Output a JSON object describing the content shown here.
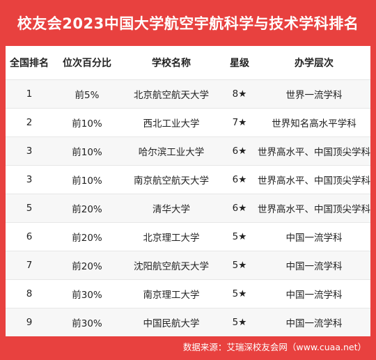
{
  "title": "校友会2023中国大学航空宇航科学与技术学科排名",
  "columns": [
    "全国排名",
    "位次百分比",
    "学校名称",
    "星级",
    "办学层次"
  ],
  "rows": [
    [
      "1",
      "前5%",
      "北京航空航天大学",
      "8★",
      "世界一流学科"
    ],
    [
      "2",
      "前10%",
      "西北工业大学",
      "7★",
      "世界知名高水平学科"
    ],
    [
      "3",
      "前10%",
      "哈尔滨工业大学",
      "6★",
      "世界高水平、中国顶尖学科"
    ],
    [
      "3",
      "前10%",
      "南京航空航天大学",
      "6★",
      "世界高水平、中国顶尖学科"
    ],
    [
      "5",
      "前20%",
      "清华大学",
      "6★",
      "世界高水平、中国顶尖学科"
    ],
    [
      "6",
      "前20%",
      "北京理工大学",
      "5★",
      "中国一流学科"
    ],
    [
      "7",
      "前20%",
      "沈阳航空航天大学",
      "5★",
      "中国一流学科"
    ],
    [
      "8",
      "前30%",
      "南京理工大学",
      "5★",
      "中国一流学科"
    ],
    [
      "9",
      "前30%",
      "中国民航大学",
      "5★",
      "中国一流学科"
    ]
  ],
  "footer": "数据来源：艾瑞深校友会网（www.cuaa.net）",
  "colors": {
    "background": "#e8413f",
    "panel": "#ffffff",
    "stripe": "#f7f7f7"
  }
}
